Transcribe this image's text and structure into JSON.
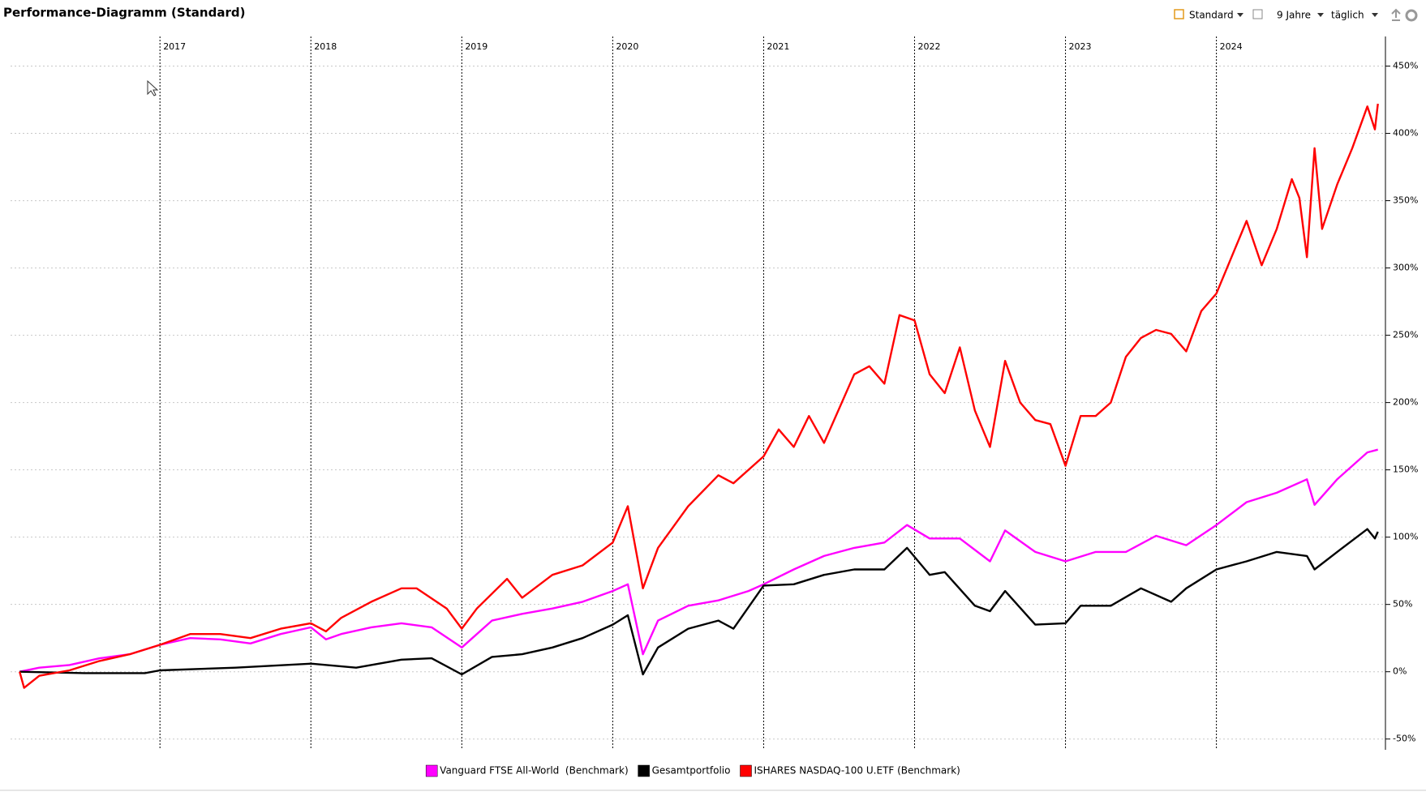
{
  "toolbar": {
    "view": "Standard",
    "period": "9 Jahre",
    "interval": "täglich"
  },
  "chart_data": {
    "type": "line",
    "title": "Performance-Diagramm (Standard)",
    "xlim": [
      2016.01,
      2025.12
    ],
    "xticks": [
      2017,
      2018,
      2019,
      2020,
      2021,
      2022,
      2023,
      2024
    ],
    "ylim": [
      -58,
      472
    ],
    "yticks": [
      {
        "value": -50,
        "label": "-50%"
      },
      {
        "value": 0,
        "label": "0%"
      },
      {
        "value": 50,
        "label": "50%"
      },
      {
        "value": 100,
        "label": "100%"
      },
      {
        "value": 150,
        "label": "150%"
      },
      {
        "value": 200,
        "label": "200%"
      },
      {
        "value": 250,
        "label": "250%"
      },
      {
        "value": 300,
        "label": "300%"
      },
      {
        "value": 350,
        "label": "350%"
      },
      {
        "value": 400,
        "label": "400%"
      },
      {
        "value": 450,
        "label": "450%"
      }
    ],
    "grid": true,
    "legend": "bottom",
    "series": [
      {
        "name": "Vanguard FTSE All-World  (Benchmark)",
        "color": "#ff00ff",
        "x": [
          2016.07,
          2016.2,
          2016.4,
          2016.6,
          2016.8,
          2017.0,
          2017.2,
          2017.4,
          2017.6,
          2017.8,
          2018.0,
          2018.1,
          2018.2,
          2018.4,
          2018.6,
          2018.8,
          2019.0,
          2019.2,
          2019.4,
          2019.6,
          2019.8,
          2020.0,
          2020.1,
          2020.2,
          2020.3,
          2020.5,
          2020.7,
          2020.9,
          2021.0,
          2021.2,
          2021.4,
          2021.6,
          2021.8,
          2021.95,
          2022.1,
          2022.3,
          2022.5,
          2022.6,
          2022.8,
          2023.0,
          2023.2,
          2023.4,
          2023.6,
          2023.8,
          2024.0,
          2024.2,
          2024.4,
          2024.6,
          2024.65,
          2024.8,
          2025.0,
          2025.07
        ],
        "values": [
          0,
          3,
          5,
          10,
          13,
          20,
          25,
          24,
          21,
          28,
          33,
          24,
          28,
          33,
          36,
          33,
          18,
          38,
          43,
          47,
          52,
          60,
          65,
          13,
          38,
          49,
          53,
          60,
          65,
          76,
          86,
          92,
          96,
          109,
          99,
          99,
          82,
          105,
          89,
          82,
          89,
          89,
          101,
          94,
          109,
          126,
          133,
          143,
          124,
          143,
          163,
          165
        ]
      },
      {
        "name": "Gesamtportfolio",
        "color": "#000000",
        "x": [
          2016.07,
          2016.5,
          2016.9,
          2017.0,
          2017.5,
          2018.0,
          2018.3,
          2018.6,
          2018.8,
          2019.0,
          2019.2,
          2019.4,
          2019.6,
          2019.8,
          2020.0,
          2020.1,
          2020.2,
          2020.3,
          2020.5,
          2020.7,
          2020.8,
          2021.0,
          2021.2,
          2021.4,
          2021.6,
          2021.8,
          2021.95,
          2022.1,
          2022.2,
          2022.4,
          2022.5,
          2022.6,
          2022.8,
          2023.0,
          2023.1,
          2023.3,
          2023.5,
          2023.7,
          2023.8,
          2024.0,
          2024.2,
          2024.4,
          2024.6,
          2024.65,
          2024.8,
          2025.0,
          2025.05,
          2025.07
        ],
        "values": [
          0,
          -1,
          -1,
          1,
          3,
          6,
          3,
          9,
          10,
          -2,
          11,
          13,
          18,
          25,
          35,
          42,
          -2,
          18,
          32,
          38,
          32,
          64,
          65,
          72,
          76,
          76,
          92,
          72,
          74,
          49,
          45,
          60,
          35,
          36,
          49,
          49,
          62,
          52,
          62,
          76,
          82,
          89,
          86,
          76,
          89,
          106,
          99,
          104
        ]
      },
      {
        "name": "ISHARES NASDAQ-100 U.ETF (Benchmark)",
        "color": "#ff0000",
        "x": [
          2016.07,
          2016.1,
          2016.2,
          2016.4,
          2016.6,
          2016.8,
          2017.0,
          2017.2,
          2017.4,
          2017.6,
          2017.8,
          2018.0,
          2018.1,
          2018.2,
          2018.4,
          2018.6,
          2018.7,
          2018.9,
          2019.0,
          2019.1,
          2019.3,
          2019.4,
          2019.6,
          2019.8,
          2020.0,
          2020.1,
          2020.2,
          2020.3,
          2020.5,
          2020.7,
          2020.8,
          2021.0,
          2021.1,
          2021.2,
          2021.3,
          2021.4,
          2021.6,
          2021.7,
          2021.8,
          2021.9,
          2022.0,
          2022.1,
          2022.2,
          2022.3,
          2022.4,
          2022.5,
          2022.6,
          2022.7,
          2022.8,
          2022.9,
          2023.0,
          2023.1,
          2023.2,
          2023.3,
          2023.4,
          2023.5,
          2023.6,
          2023.7,
          2023.8,
          2023.9,
          2024.0,
          2024.1,
          2024.2,
          2024.3,
          2024.4,
          2024.5,
          2024.55,
          2024.6,
          2024.65,
          2024.7,
          2024.8,
          2024.9,
          2025.0,
          2025.05,
          2025.07
        ],
        "values": [
          0,
          -12,
          -3,
          1,
          8,
          13,
          20,
          28,
          28,
          25,
          32,
          36,
          30,
          40,
          52,
          62,
          62,
          47,
          32,
          47,
          69,
          55,
          72,
          79,
          96,
          123,
          62,
          92,
          123,
          146,
          140,
          160,
          180,
          167,
          190,
          170,
          221,
          227,
          214,
          265,
          261,
          221,
          207,
          241,
          194,
          167,
          231,
          200,
          187,
          184,
          153,
          190,
          190,
          200,
          234,
          248,
          254,
          251,
          238,
          268,
          281,
          308,
          335,
          302,
          329,
          366,
          352,
          308,
          389,
          329,
          362,
          389,
          420,
          403,
          422
        ]
      }
    ]
  }
}
